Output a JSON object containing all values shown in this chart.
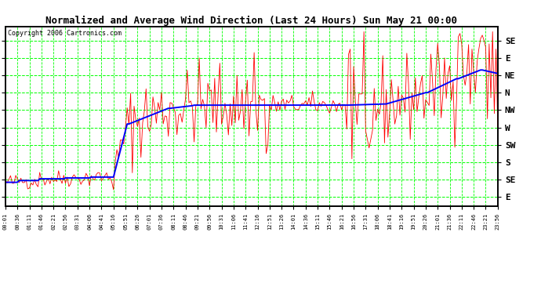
{
  "title": "Normalized and Average Wind Direction (Last 24 Hours) Sun May 21 00:00",
  "copyright": "Copyright 2006 Cartronics.com",
  "ytick_labels": [
    "E",
    "SE",
    "S",
    "SW",
    "W",
    "NW",
    "N",
    "NE",
    "E",
    "SE"
  ],
  "ytick_values": [
    0,
    1,
    2,
    3,
    4,
    5,
    6,
    7,
    8,
    9
  ],
  "bg_color": "#ffffff",
  "grid_color": "#00ff00",
  "red_color": "#ff0000",
  "blue_color": "#0000ff",
  "title_fontsize": 9,
  "copyright_fontsize": 6,
  "figsize": [
    6.9,
    3.75
  ],
  "dpi": 100,
  "xtick_labels": [
    "00:01",
    "00:36",
    "01:11",
    "01:46",
    "02:21",
    "02:56",
    "03:31",
    "04:06",
    "04:41",
    "05:16",
    "05:51",
    "06:26",
    "07:01",
    "07:36",
    "08:11",
    "08:46",
    "09:21",
    "09:56",
    "10:31",
    "11:06",
    "11:41",
    "12:16",
    "12:51",
    "13:26",
    "14:01",
    "14:36",
    "15:11",
    "15:46",
    "16:21",
    "16:56",
    "17:31",
    "18:06",
    "18:41",
    "19:16",
    "19:51",
    "20:26",
    "21:01",
    "21:36",
    "22:11",
    "22:46",
    "23:21",
    "23:56"
  ]
}
